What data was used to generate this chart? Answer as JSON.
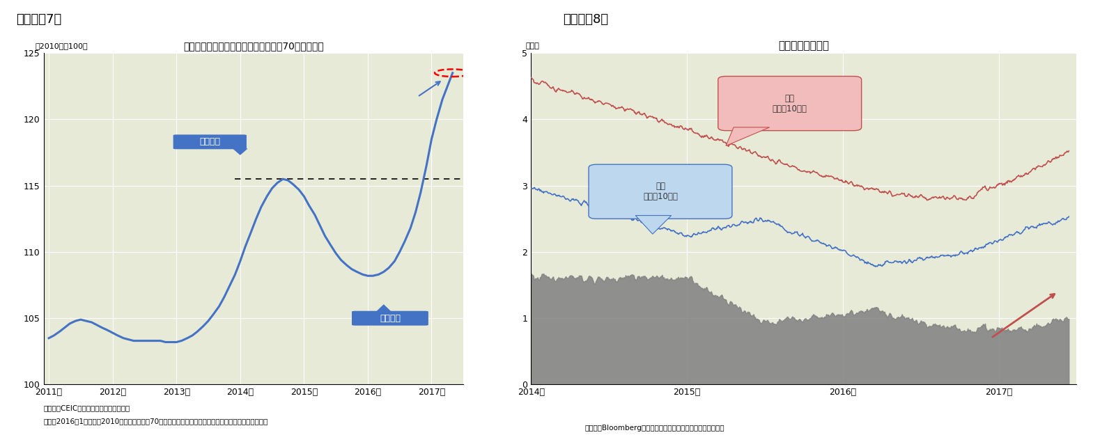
{
  "fig7": {
    "title": "新築分譲住宅価格（除く保障性住宅、70都市平均）",
    "ylabel": "（2010年＝100）",
    "ylim": [
      100,
      125
    ],
    "yticks": [
      100,
      105,
      110,
      115,
      120,
      125
    ],
    "xlim": [
      2010.92,
      2017.5
    ],
    "xticks": [
      2011,
      2012,
      2013,
      2014,
      2015,
      2016,
      2017
    ],
    "xticklabels": [
      "2011年",
      "2012年",
      "2013年",
      "2014年",
      "2015年",
      "2016年",
      "2017年"
    ],
    "line_color": "#4472C4",
    "bg_color": "#E8EAD8",
    "dashed_y": 115.5,
    "annotation_maekkai": "前回高値",
    "annotation_chokkin": "直近底値",
    "source1": "（資料）CEIC（出所は中国国家統計局）",
    "source2": "（注）2016年1月以降の2010年基準指数及び70都市平均は公表されないためニッセイ基礎研究所で推定",
    "data_x": [
      2011.0,
      2011.08,
      2011.17,
      2011.25,
      2011.33,
      2011.42,
      2011.5,
      2011.58,
      2011.67,
      2011.75,
      2011.83,
      2011.92,
      2012.0,
      2012.08,
      2012.17,
      2012.25,
      2012.33,
      2012.42,
      2012.5,
      2012.58,
      2012.67,
      2012.75,
      2012.83,
      2012.92,
      2013.0,
      2013.08,
      2013.17,
      2013.25,
      2013.33,
      2013.42,
      2013.5,
      2013.58,
      2013.67,
      2013.75,
      2013.83,
      2013.92,
      2014.0,
      2014.08,
      2014.17,
      2014.25,
      2014.33,
      2014.42,
      2014.5,
      2014.58,
      2014.67,
      2014.75,
      2014.83,
      2014.92,
      2015.0,
      2015.08,
      2015.17,
      2015.25,
      2015.33,
      2015.42,
      2015.5,
      2015.58,
      2015.67,
      2015.75,
      2015.83,
      2015.92,
      2016.0,
      2016.08,
      2016.17,
      2016.25,
      2016.33,
      2016.42,
      2016.5,
      2016.58,
      2016.67,
      2016.75,
      2016.83,
      2016.92,
      2017.0,
      2017.08,
      2017.17,
      2017.25,
      2017.33
    ],
    "data_y": [
      103.5,
      103.7,
      104.0,
      104.3,
      104.6,
      104.8,
      104.9,
      104.8,
      104.7,
      104.5,
      104.3,
      104.1,
      103.9,
      103.7,
      103.5,
      103.4,
      103.3,
      103.3,
      103.3,
      103.3,
      103.3,
      103.3,
      103.2,
      103.2,
      103.2,
      103.3,
      103.5,
      103.7,
      104.0,
      104.4,
      104.8,
      105.3,
      105.9,
      106.6,
      107.4,
      108.3,
      109.3,
      110.4,
      111.5,
      112.5,
      113.4,
      114.2,
      114.8,
      115.2,
      115.5,
      115.4,
      115.1,
      114.7,
      114.2,
      113.5,
      112.8,
      112.0,
      111.2,
      110.5,
      109.9,
      109.4,
      109.0,
      108.7,
      108.5,
      108.3,
      108.2,
      108.2,
      108.3,
      108.5,
      108.8,
      109.3,
      110.0,
      110.8,
      111.8,
      113.0,
      114.5,
      116.5,
      118.5,
      120.0,
      121.5,
      122.5,
      123.5
    ]
  },
  "fig8": {
    "title": "米中の長期金利差",
    "ylabel": "（％）",
    "ylim": [
      0,
      5
    ],
    "yticks": [
      0,
      1,
      2,
      3,
      4,
      5
    ],
    "source": "（資料）Bloombergのデータを元にニッセイ基礎研究所で作成",
    "china_color": "#C0504D",
    "us_color": "#4472C4",
    "spread_color": "#808080",
    "bg_color": "#E8EAD8",
    "annotation_china": "中国\n（国債10年）",
    "annotation_us": "米国\n（国債10年）"
  }
}
